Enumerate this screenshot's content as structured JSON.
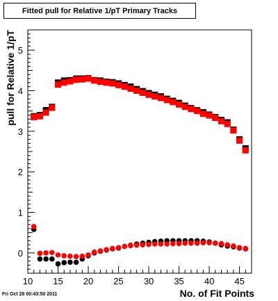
{
  "chart_data": {
    "type": "scatter",
    "title": "Fitted pull for Relative 1/pT Primary Tracks",
    "xlabel": "No. of Fit Points",
    "ylabel": "pull for Relative 1/pT",
    "xlim": [
      10,
      47
    ],
    "ylim": [
      -0.5,
      5.5
    ],
    "x_ticks": [
      10,
      15,
      20,
      25,
      30,
      35,
      40,
      45
    ],
    "y_ticks": [
      0,
      1,
      2,
      3,
      4,
      5
    ],
    "grid": false,
    "legend": "none",
    "series": [
      {
        "color": "#000000",
        "marker": "square",
        "group": "mean",
        "x": [
          11,
          12,
          13,
          14,
          15,
          16,
          17,
          18,
          19,
          20,
          21,
          22,
          23,
          24,
          25,
          26,
          27,
          28,
          29,
          30,
          31,
          32,
          33,
          34,
          35,
          36,
          37,
          38,
          39,
          40,
          41,
          42,
          43,
          44,
          45,
          46
        ],
        "y": [
          3.37,
          3.4,
          3.52,
          3.6,
          4.2,
          4.25,
          4.26,
          4.3,
          4.3,
          4.31,
          4.26,
          4.25,
          4.22,
          4.21,
          4.18,
          4.14,
          4.1,
          4.04,
          3.99,
          3.94,
          3.9,
          3.86,
          3.8,
          3.75,
          3.7,
          3.63,
          3.57,
          3.52,
          3.47,
          3.41,
          3.35,
          3.28,
          3.22,
          3.04,
          2.8,
          2.58
        ]
      },
      {
        "color": "#ff0000",
        "marker": "square",
        "group": "mean",
        "x": [
          11,
          12,
          13,
          14,
          15,
          16,
          17,
          18,
          19,
          20,
          21,
          22,
          23,
          24,
          25,
          26,
          27,
          28,
          29,
          30,
          31,
          32,
          33,
          34,
          35,
          36,
          37,
          38,
          39,
          40,
          41,
          42,
          43,
          44,
          45,
          46
        ],
        "y": [
          3.35,
          3.37,
          3.46,
          3.58,
          4.15,
          4.2,
          4.23,
          4.27,
          4.28,
          4.3,
          4.25,
          4.22,
          4.2,
          4.18,
          4.14,
          4.1,
          4.05,
          4.0,
          3.95,
          3.9,
          3.86,
          3.82,
          3.77,
          3.72,
          3.66,
          3.6,
          3.55,
          3.5,
          3.43,
          3.39,
          3.33,
          3.25,
          3.18,
          3.02,
          2.77,
          2.53
        ]
      },
      {
        "color": "#000000",
        "marker": "circle",
        "group": "sigma",
        "x": [
          11,
          12,
          13,
          14,
          15,
          16,
          17,
          18,
          19,
          20,
          21,
          22,
          23,
          24,
          25,
          26,
          27,
          28,
          29,
          30,
          31,
          32,
          33,
          34,
          35,
          36,
          37,
          38,
          39,
          40,
          41,
          42,
          43,
          44,
          45,
          46
        ],
        "y": [
          0.58,
          -0.15,
          -0.15,
          -0.15,
          -0.27,
          -0.24,
          -0.23,
          -0.23,
          -0.15,
          -0.07,
          0.0,
          0.04,
          0.07,
          0.1,
          0.12,
          0.16,
          0.19,
          0.22,
          0.24,
          0.26,
          0.28,
          0.29,
          0.3,
          0.3,
          0.3,
          0.3,
          0.3,
          0.3,
          0.29,
          0.27,
          0.24,
          0.2,
          0.17,
          0.15,
          0.12,
          0.1
        ]
      },
      {
        "color": "#ff0000",
        "marker": "circle",
        "group": "sigma",
        "x": [
          11,
          12,
          13,
          14,
          15,
          16,
          17,
          18,
          19,
          20,
          21,
          22,
          23,
          24,
          25,
          26,
          27,
          28,
          29,
          30,
          31,
          32,
          33,
          34,
          35,
          36,
          37,
          38,
          39,
          40,
          41,
          42,
          43,
          44,
          45,
          46
        ],
        "y": [
          0.65,
          -0.01,
          0.0,
          0.01,
          -0.05,
          -0.07,
          -0.08,
          -0.09,
          -0.08,
          -0.05,
          0.02,
          0.05,
          0.08,
          0.11,
          0.13,
          0.16,
          0.18,
          0.19,
          0.2,
          0.21,
          0.22,
          0.22,
          0.22,
          0.23,
          0.23,
          0.24,
          0.24,
          0.24,
          0.25,
          0.25,
          0.24,
          0.23,
          0.2,
          0.17,
          0.13,
          0.11
        ]
      }
    ]
  },
  "footer": {
    "timestamp": "Fri Oct 28 00:43:50 2011"
  }
}
